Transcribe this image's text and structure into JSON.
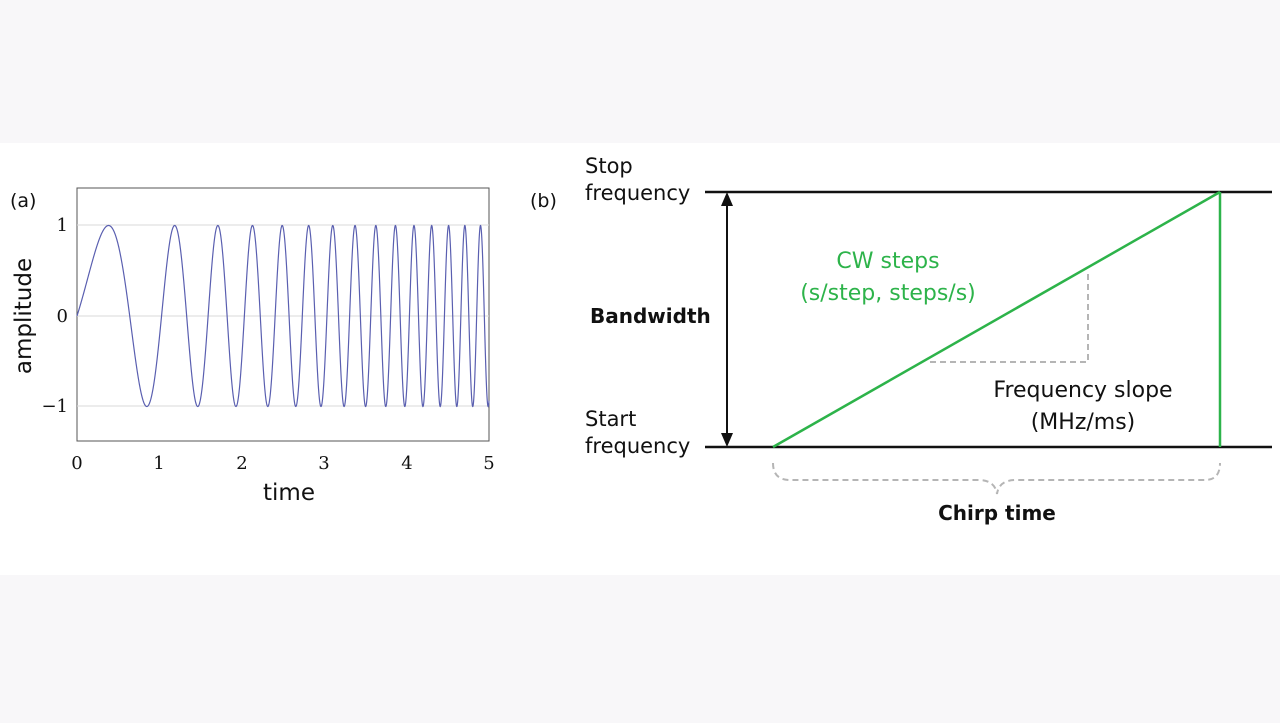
{
  "colors": {
    "background": "#f8f7f9",
    "panel": "#ffffff",
    "chirp": "#5a5fb0",
    "green": "#2db34a",
    "black": "#111111",
    "dashed": "#b5b5b5",
    "grid": "#d9d9d9"
  },
  "panel_a": {
    "label": "(a)",
    "chart_data": {
      "type": "line",
      "series": [
        {
          "function": "sin(pi*t^2 + 2.9*t)",
          "samples": 2400
        }
      ],
      "xlabel": "time",
      "ylabel": "amplitude",
      "xlim": [
        0,
        5
      ],
      "ylim": [
        -1.4,
        1.4
      ],
      "xticks": [
        "0",
        "1",
        "2",
        "3",
        "4",
        "5"
      ],
      "yticks": [
        "1",
        "0",
        "−1"
      ],
      "grid": "horizontal-at-ticks"
    }
  },
  "panel_b": {
    "label": "(b)",
    "stop_label": [
      "Stop",
      "frequency"
    ],
    "start_label": [
      "Start",
      "frequency"
    ],
    "bandwidth_label": "Bandwidth",
    "cw_label": [
      "CW steps",
      "(s/step, steps/s)"
    ],
    "slope_label": [
      "Frequency slope",
      "(MHz/ms)"
    ],
    "chirp_time_label": "Chirp time"
  }
}
